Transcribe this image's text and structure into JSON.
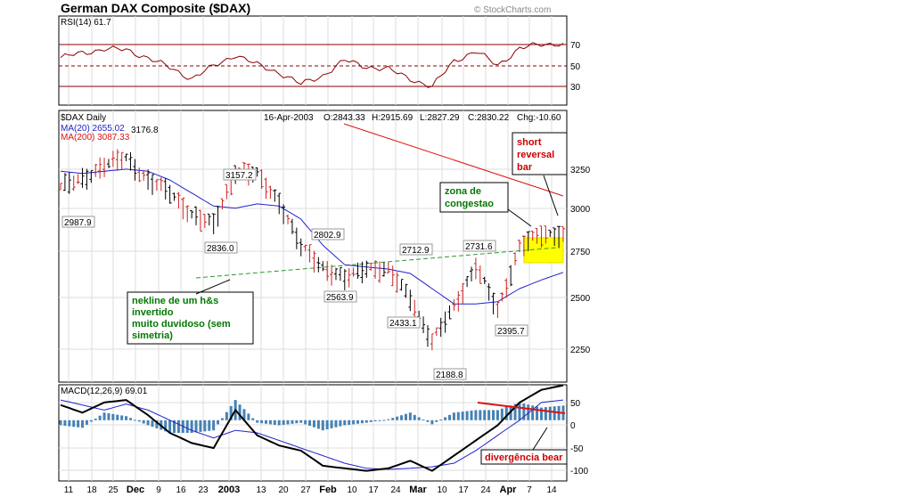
{
  "title": "German DAX Composite ($DAX)",
  "copyright": "© StockCharts.com",
  "rsi": {
    "label": "RSI(14) 61.7",
    "levels": [
      70,
      50,
      30
    ],
    "tick_labels": [
      "70",
      "50",
      "30"
    ],
    "line_color": "#8b0000"
  },
  "price": {
    "label": "$DAX Daily",
    "ohlc_line": {
      "date": "16-Apr-2003",
      "o": "O:2843.33",
      "h": "H:2915.69",
      "l": "L:2827.29",
      "c": "C:2830.22",
      "chg": "Chg:-10.60"
    },
    "ma20_label": "MA(20) 2655.02",
    "ma200_label": "MA(200) 3087.33",
    "ma20_color": "#2222cc",
    "ma200_color": "#dd1111",
    "y_ticks": [
      "3250",
      "3000",
      "2750",
      "2500",
      "2250"
    ],
    "value_labels": [
      "3176.8",
      "3157.2",
      "2987.9",
      "2836.0",
      "2802.9",
      "2712.9",
      "2731.6",
      "2563.9",
      "2433.1",
      "2395.7",
      "2188.8"
    ],
    "annotations": {
      "reversal": [
        "short",
        "reversal",
        "bar"
      ],
      "congestion": [
        "zona de",
        "congestao"
      ],
      "neckline": [
        "nekline de um h&s",
        "invertido",
        "muito duvidoso (sem",
        "simetria)"
      ]
    }
  },
  "macd": {
    "label": "MACD(12,26,9) 69.01",
    "y_ticks": [
      "50",
      "0",
      "-50",
      "-100"
    ],
    "annotation": "divergência bear",
    "macd_color": "#000000",
    "signal_color": "#2222cc",
    "hist_color": "#4682b4"
  },
  "x_ticks": [
    "11",
    "18",
    "25",
    "Dec",
    "9",
    "16",
    "23",
    "2003",
    "13",
    "20",
    "27",
    "Feb",
    "10",
    "17",
    "24",
    "Mar",
    "10",
    "17",
    "24",
    "Apr",
    "7",
    "14"
  ],
  "chart_data": {
    "type": "line",
    "title": "German DAX Composite ($DAX)",
    "x_dates": [
      "2002-11-11",
      "2002-11-18",
      "2002-11-25",
      "2002-12-02",
      "2002-12-09",
      "2002-12-16",
      "2002-12-23",
      "2002-12-30",
      "2003-01-06",
      "2003-01-13",
      "2003-01-20",
      "2003-01-27",
      "2003-02-03",
      "2003-02-10",
      "2003-02-17",
      "2003-02-24",
      "2003-03-03",
      "2003-03-10",
      "2003-03-17",
      "2003-03-24",
      "2003-03-31",
      "2003-04-07",
      "2003-04-14",
      "2003-04-16"
    ],
    "series": [
      {
        "name": "$DAX Daily",
        "values": [
          3050,
          3080,
          3150,
          3176.8,
          3080,
          3020,
          2920,
          2870,
          3120,
          3100,
          2980,
          2770,
          2680,
          2620,
          2680,
          2660,
          2540,
          2330,
          2500,
          2680,
          2480,
          2770,
          2830,
          2830.22
        ]
      },
      {
        "name": "MA(20) 2655.02",
        "values": [
          3120,
          3110,
          3120,
          3130,
          3120,
          3080,
          3020,
          2960,
          2950,
          2970,
          2960,
          2900,
          2780,
          2690,
          2680,
          2670,
          2650,
          2580,
          2510,
          2510,
          2520,
          2580,
          2620,
          2655.02
        ]
      },
      {
        "name": "MA(200) 3087.33",
        "values": [
          null,
          null,
          null,
          null,
          null,
          null,
          null,
          null,
          null,
          null,
          null,
          null,
          null,
          null,
          null,
          null,
          3380,
          3330,
          3280,
          3230,
          3180,
          3130,
          3100,
          3087.33
        ]
      }
    ],
    "ylim": [
      2150,
      3400
    ],
    "rsi": {
      "name": "RSI(14) 61.7",
      "levels": [
        70,
        50,
        30
      ],
      "ylim": [
        20,
        80
      ],
      "values": [
        52,
        55,
        58,
        57,
        52,
        45,
        38,
        46,
        54,
        47,
        42,
        34,
        40,
        50,
        46,
        44,
        38,
        32,
        50,
        56,
        47,
        58,
        61,
        61.7
      ]
    },
    "macd": {
      "name": "MACD(12,26,9) 69.01",
      "ylim": [
        -120,
        70
      ],
      "macd": [
        30,
        15,
        35,
        40,
        10,
        -25,
        -45,
        -55,
        20,
        -30,
        -50,
        -60,
        -90,
        -95,
        -100,
        -95,
        -80,
        -100,
        -70,
        -40,
        -10,
        35,
        60,
        69.01
      ],
      "signal": [
        40,
        30,
        20,
        32,
        20,
        0,
        -20,
        -35,
        -20,
        -25,
        -40,
        -55,
        -70,
        -85,
        -95,
        -97,
        -95,
        -92,
        -85,
        -60,
        -30,
        0,
        35,
        40
      ]
    },
    "grid": true,
    "legend": "top-left",
    "annotations": [
      "short reversal bar",
      "zona de congestao",
      "nekline de um h&s invertido muito duvidoso (sem simetria)",
      "divergência bear"
    ]
  }
}
